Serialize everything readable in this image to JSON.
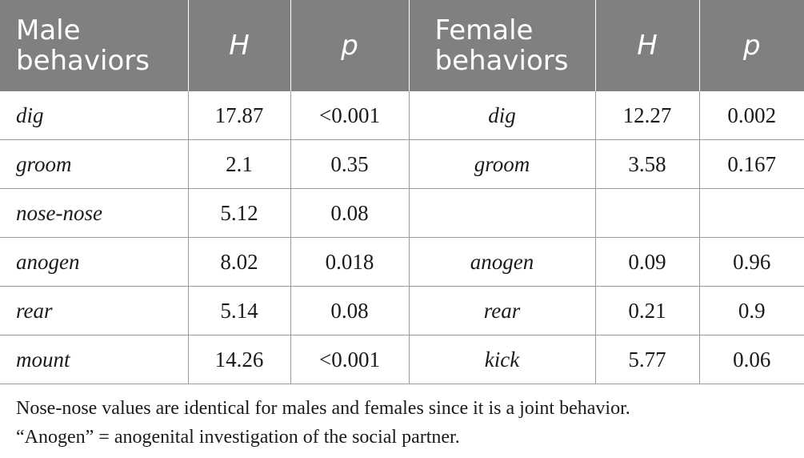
{
  "table": {
    "headers": {
      "male_behaviors": "Male behaviors",
      "h_male": "H",
      "p_male": "p",
      "female_behaviors": "Female behaviors",
      "h_female": "H",
      "p_female": "p"
    },
    "rows": [
      {
        "male_behavior": "dig",
        "male_h": "17.87",
        "male_p": "<0.001",
        "female_behavior": "dig",
        "female_h": "12.27",
        "female_p": "0.002"
      },
      {
        "male_behavior": "groom",
        "male_h": "2.1",
        "male_p": "0.35",
        "female_behavior": "groom",
        "female_h": "3.58",
        "female_p": "0.167"
      },
      {
        "male_behavior": "nose-nose",
        "male_h": "5.12",
        "male_p": "0.08",
        "female_behavior": "",
        "female_h": "",
        "female_p": ""
      },
      {
        "male_behavior": "anogen",
        "male_h": "8.02",
        "male_p": "0.018",
        "female_behavior": "anogen",
        "female_h": "0.09",
        "female_p": "0.96"
      },
      {
        "male_behavior": "rear",
        "male_h": "5.14",
        "male_p": "0.08",
        "female_behavior": "rear",
        "female_h": "0.21",
        "female_p": "0.9"
      },
      {
        "male_behavior": "mount",
        "male_h": "14.26",
        "male_p": "<0.001",
        "female_behavior": "kick",
        "female_h": "5.77",
        "female_p": "0.06"
      }
    ]
  },
  "notes": {
    "line1": "Nose-nose values are identical for males and females since it is a joint behavior.",
    "line2": "“Anogen” = anogenital investigation of the social partner."
  },
  "colors": {
    "header_bg": "#808080",
    "header_text": "#ffffff",
    "grid": "#9a9a9a"
  }
}
